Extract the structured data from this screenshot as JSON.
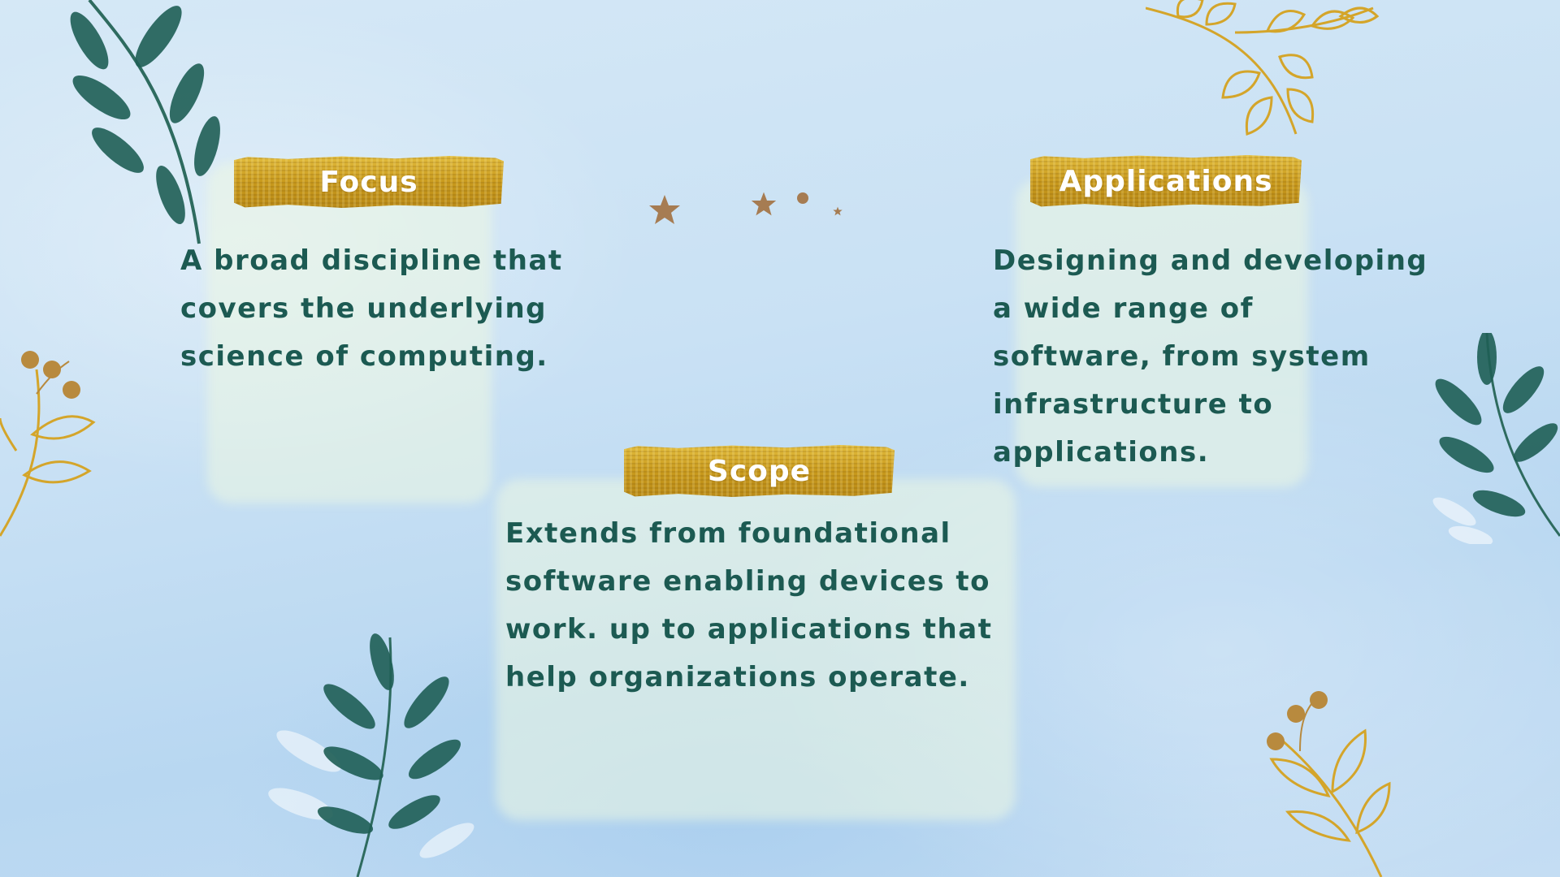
{
  "colors": {
    "heading_text": "#ffffff",
    "body_text": "#1c5a52",
    "gold": "#c99a1d",
    "leaf_green": "#1f5f56",
    "star_brown": "#a67c52"
  },
  "sections": {
    "focus": {
      "heading": "Focus",
      "lines": [
        "A broad discipline that",
        "covers the underlying",
        "science of computing."
      ]
    },
    "applications": {
      "heading": "Applications",
      "lines": [
        "Designing and developing",
        "a wide range of",
        "software, from system",
        "infrastructure to",
        "applications."
      ]
    },
    "scope": {
      "heading": "Scope",
      "lines": [
        "Extends from foundational",
        "software enabling devices to",
        "work. up to applications that",
        "help organizations operate."
      ]
    }
  },
  "decorations": {
    "icons": [
      "green-leaf-branch-icon",
      "gold-leaf-branch-icon",
      "gold-berry-sprig-icon",
      "star-icon",
      "dot-icon"
    ]
  }
}
